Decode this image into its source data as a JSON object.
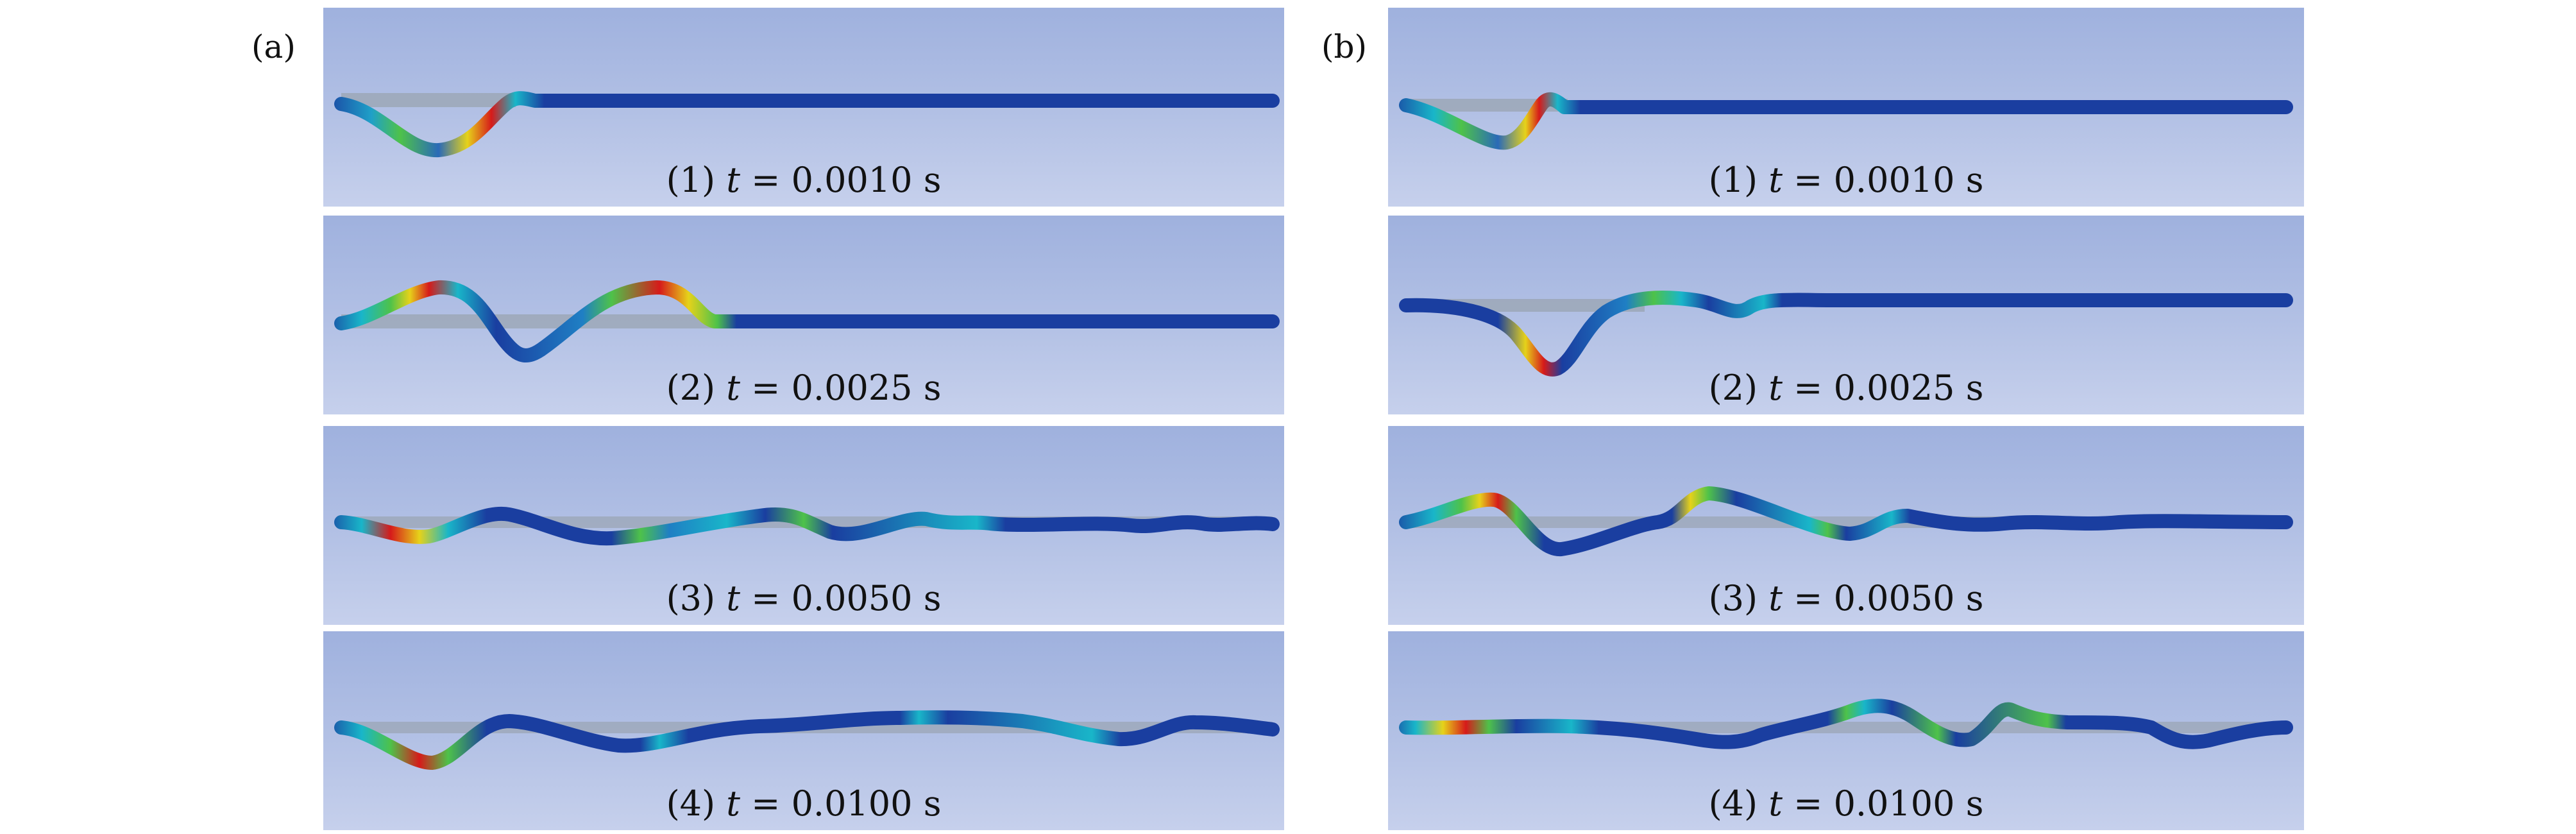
{
  "figure_labels": {
    "a": "(a)",
    "b": "(b)"
  },
  "panels": {
    "a": [
      {
        "caption": {
          "index": "(1)",
          "var": "t",
          "eq": "=",
          "value": "0.0010",
          "unit": "s"
        }
      },
      {
        "caption": {
          "index": "(2)",
          "var": "t",
          "eq": "=",
          "value": "0.0025",
          "unit": "s"
        }
      },
      {
        "caption": {
          "index": "(3)",
          "var": "t",
          "eq": "=",
          "value": "0.0050",
          "unit": "s"
        }
      },
      {
        "caption": {
          "index": "(4)",
          "var": "t",
          "eq": "=",
          "value": "0.0100",
          "unit": "s"
        }
      }
    ],
    "b": [
      {
        "caption": {
          "index": "(1)",
          "var": "t",
          "eq": "=",
          "value": "0.0010",
          "unit": "s"
        }
      },
      {
        "caption": {
          "index": "(2)",
          "var": "t",
          "eq": "=",
          "value": "0.0025",
          "unit": "s"
        }
      },
      {
        "caption": {
          "index": "(3)",
          "var": "t",
          "eq": "=",
          "value": "0.0050",
          "unit": "s"
        }
      },
      {
        "caption": {
          "index": "(4)",
          "var": "t",
          "eq": "=",
          "value": "0.0100",
          "unit": "s"
        }
      }
    ]
  },
  "colors": {
    "background_top": "#9fb1de",
    "background_bottom": "#c6d0ec",
    "reference_line": "#9aa4b2",
    "beam_base": "#1a3ea0",
    "contour_cyan": "#19b6c9",
    "contour_green": "#4ec24a",
    "contour_yellow": "#e6d21a",
    "contour_red": "#d61a1a"
  }
}
